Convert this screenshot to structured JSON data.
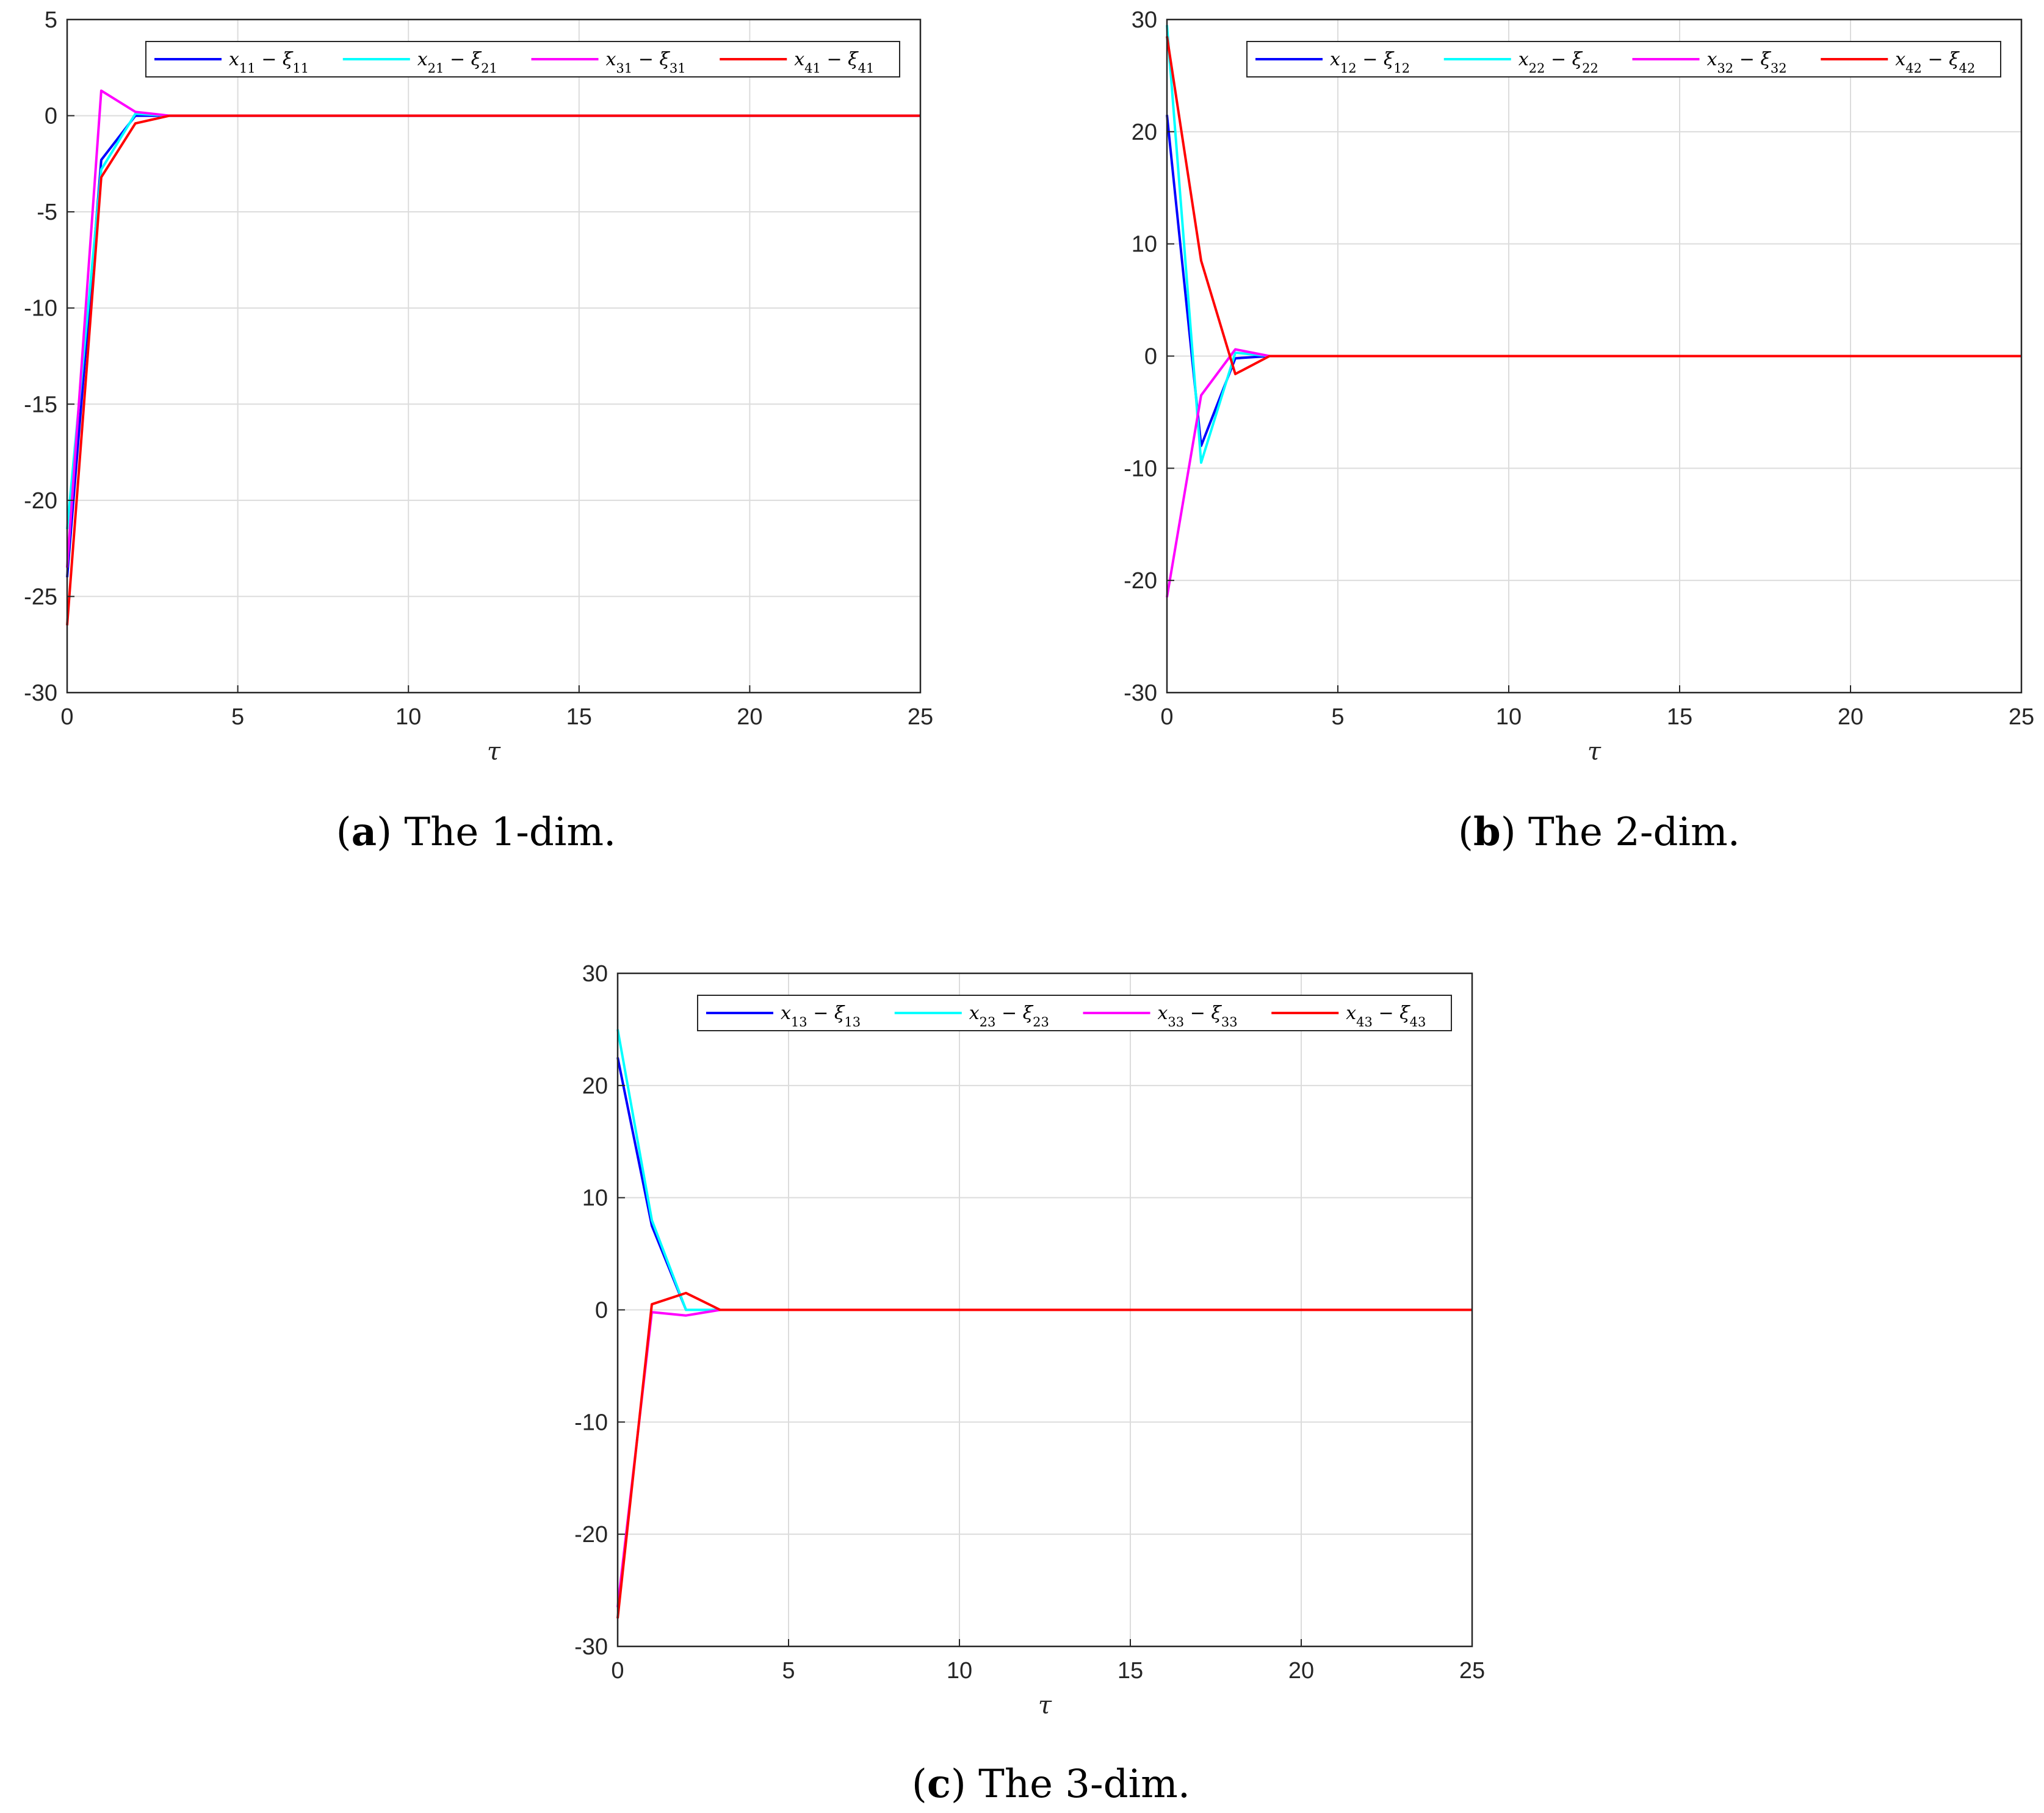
{
  "chart_data": [
    {
      "type": "line",
      "id": "a",
      "caption": {
        "letter": "a",
        "text": "The 1-dim."
      },
      "xlabel": "τ",
      "xlim": [
        0,
        25
      ],
      "ylim": [
        -30,
        5
      ],
      "xticks": [
        0,
        5,
        10,
        15,
        20,
        25
      ],
      "yticks": [
        5,
        0,
        -5,
        -10,
        -15,
        -20,
        -25,
        -30
      ],
      "grid": true,
      "legend_position": "top-right",
      "x": [
        0,
        1,
        2,
        3,
        4,
        5,
        10,
        15,
        20,
        25
      ],
      "series": [
        {
          "name": "x11 − ξ11",
          "color": "#0000ff",
          "values": [
            -24.0,
            -2.3,
            0.0,
            0.0,
            0.0,
            0.0,
            0.0,
            0.0,
            0.0,
            0.0
          ]
        },
        {
          "name": "x21 − ξ21",
          "color": "#00ffff",
          "values": [
            -21.5,
            -2.8,
            0.1,
            0.0,
            0.0,
            0.0,
            0.0,
            0.0,
            0.0,
            0.0
          ]
        },
        {
          "name": "x31 − ξ31",
          "color": "#ff00ff",
          "values": [
            -23.5,
            1.3,
            0.2,
            0.0,
            0.0,
            0.0,
            0.0,
            0.0,
            0.0,
            0.0
          ]
        },
        {
          "name": "x41 − ξ41",
          "color": "#ff0000",
          "values": [
            -26.5,
            -3.2,
            -0.4,
            0.0,
            0.0,
            0.0,
            0.0,
            0.0,
            0.0,
            0.0
          ]
        }
      ]
    },
    {
      "type": "line",
      "id": "b",
      "caption": {
        "letter": "b",
        "text": "The 2-dim."
      },
      "xlabel": "τ",
      "xlim": [
        0,
        25
      ],
      "ylim": [
        -30,
        30
      ],
      "xticks": [
        0,
        5,
        10,
        15,
        20,
        25
      ],
      "yticks": [
        30,
        20,
        10,
        0,
        -10,
        -20,
        -30
      ],
      "grid": true,
      "legend_position": "top-right",
      "x": [
        0,
        1,
        2,
        3,
        4,
        5,
        10,
        15,
        20,
        25
      ],
      "series": [
        {
          "name": "x12 − ξ12",
          "color": "#0000ff",
          "values": [
            21.5,
            -8.0,
            -0.2,
            0.0,
            0.0,
            0.0,
            0.0,
            0.0,
            0.0,
            0.0
          ]
        },
        {
          "name": "x22 − ξ22",
          "color": "#00ffff",
          "values": [
            29.5,
            -9.5,
            0.3,
            0.0,
            0.0,
            0.0,
            0.0,
            0.0,
            0.0,
            0.0
          ]
        },
        {
          "name": "x32 − ξ32",
          "color": "#ff00ff",
          "values": [
            -21.5,
            -3.5,
            0.6,
            0.0,
            0.0,
            0.0,
            0.0,
            0.0,
            0.0,
            0.0
          ]
        },
        {
          "name": "x42 − ξ42",
          "color": "#ff0000",
          "values": [
            28.5,
            8.5,
            -1.6,
            0.0,
            0.0,
            0.0,
            0.0,
            0.0,
            0.0,
            0.0
          ]
        }
      ]
    },
    {
      "type": "line",
      "id": "c",
      "caption": {
        "letter": "c",
        "text": "The 3-dim."
      },
      "xlabel": "τ",
      "xlim": [
        0,
        25
      ],
      "ylim": [
        -30,
        30
      ],
      "xticks": [
        0,
        5,
        10,
        15,
        20,
        25
      ],
      "yticks": [
        30,
        20,
        10,
        0,
        -10,
        -20,
        -30
      ],
      "grid": true,
      "legend_position": "top-right",
      "x": [
        0,
        1,
        2,
        3,
        4,
        5,
        10,
        15,
        20,
        25
      ],
      "series": [
        {
          "name": "x13 − ξ13",
          "color": "#0000ff",
          "values": [
            22.5,
            7.5,
            0.0,
            0.0,
            0.0,
            0.0,
            0.0,
            0.0,
            0.0,
            0.0
          ]
        },
        {
          "name": "x23 − ξ23",
          "color": "#00ffff",
          "values": [
            25.0,
            8.0,
            0.0,
            0.0,
            0.0,
            0.0,
            0.0,
            0.0,
            0.0,
            0.0
          ]
        },
        {
          "name": "x33 − ξ33",
          "color": "#ff00ff",
          "values": [
            -26.5,
            -0.2,
            -0.5,
            0.0,
            0.0,
            0.0,
            0.0,
            0.0,
            0.0,
            0.0
          ]
        },
        {
          "name": "x43 − ξ43",
          "color": "#ff0000",
          "values": [
            -27.5,
            0.5,
            1.5,
            0.0,
            0.0,
            0.0,
            0.0,
            0.0,
            0.0,
            0.0
          ]
        }
      ]
    }
  ]
}
